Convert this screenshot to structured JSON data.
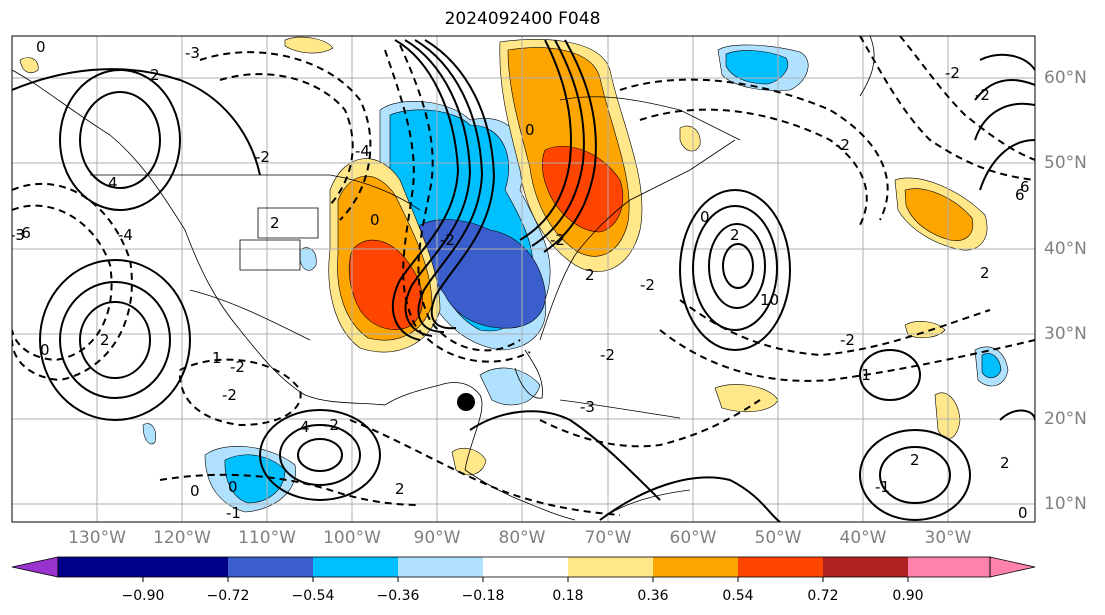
{
  "title": "2024092400 F048",
  "map": {
    "lon_labels": [
      "130°W",
      "120°W",
      "110°W",
      "100°W",
      "90°W",
      "80°W",
      "70°W",
      "60°W",
      "50°W",
      "40°W",
      "30°W"
    ],
    "lat_labels": [
      "60°N",
      "50°N",
      "40°N",
      "30°N",
      "20°N",
      "10°N"
    ],
    "contour_labels": [
      "0",
      "2",
      "4",
      "-4",
      "-6",
      "-3",
      "-2",
      "2",
      "0",
      "2",
      "-2",
      "1",
      "-2",
      "0",
      "4",
      "2",
      "-4",
      "0",
      "-2",
      "0",
      "-2",
      "2",
      "10",
      "0",
      "-2",
      "6",
      "-2",
      "2",
      "-2",
      "-1",
      "-2",
      "-2",
      "-2",
      "6",
      "2",
      "-3",
      "0",
      "2",
      "-1",
      "2",
      "-3",
      "-1",
      "0",
      "-2"
    ],
    "storm_marker": "black-dot"
  },
  "colorbar": {
    "ticks": [
      "−0.90",
      "−0.72",
      "−0.54",
      "−0.36",
      "−0.18",
      "0.18",
      "0.36",
      "0.54",
      "0.72",
      "0.90"
    ],
    "colors": [
      "#9a32cd",
      "#00008b",
      "#3a5fcd",
      "#00bfff",
      "#b0e2ff",
      "#ffffff",
      "#ffe78a",
      "#ffa500",
      "#ff4500",
      "#b22222",
      "#ff82ab"
    ]
  },
  "palette": {
    "blue_light": "#b0e2ff",
    "blue": "#00bfff",
    "blue_dark": "#3a5fcd",
    "yellow": "#ffe78a",
    "orange": "#ffa500",
    "red_orange": "#ff4500"
  }
}
